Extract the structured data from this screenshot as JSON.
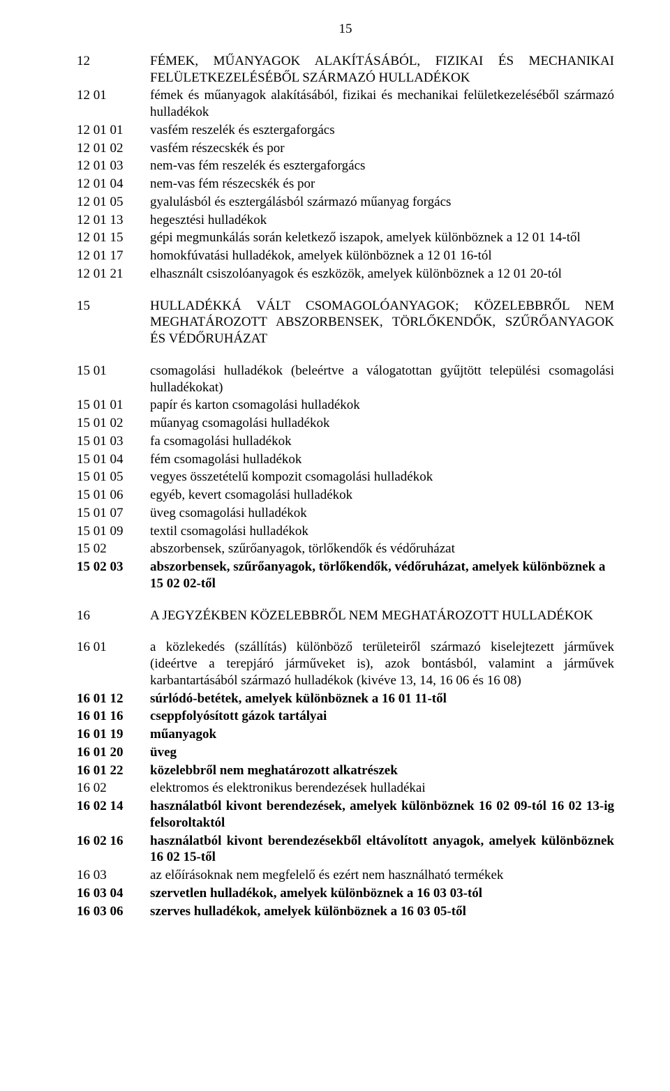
{
  "page_number": "15",
  "entries": [
    {
      "code": "12",
      "text": "FÉMEK, MŰANYAGOK ALAKÍTÁSÁBÓL, FIZIKAI ÉS MECHANIKAI FELÜLETKEZELÉSÉBŐL SZÁRMAZÓ HULLADÉKOK",
      "bold": false,
      "justify": true,
      "gap_before": false,
      "gap_after": false
    },
    {
      "code": "12 01",
      "text": "fémek és műanyagok alakításából, fizikai és mechanikai felületkezeléséből származó hulladékok",
      "bold": false,
      "justify": true,
      "gap_before": false,
      "gap_after": false
    },
    {
      "code": "12 01 01",
      "text": "vasfém reszelék és esztergaforgács",
      "bold": false,
      "justify": false,
      "gap_before": false,
      "gap_after": false
    },
    {
      "code": "12 01 02",
      "text": "vasfém részecskék és por",
      "bold": false,
      "justify": false,
      "gap_before": false,
      "gap_after": false
    },
    {
      "code": "12 01 03",
      "text": "nem-vas fém reszelék és esztergaforgács",
      "bold": false,
      "justify": false,
      "gap_before": false,
      "gap_after": false
    },
    {
      "code": "12 01 04",
      "text": "nem-vas fém részecskék és por",
      "bold": false,
      "justify": false,
      "gap_before": false,
      "gap_after": false
    },
    {
      "code": "12 01 05",
      "text": "gyalulásból és esztergálásból származó műanyag forgács",
      "bold": false,
      "justify": false,
      "gap_before": false,
      "gap_after": false
    },
    {
      "code": "12 01 13",
      "text": "hegesztési hulladékok",
      "bold": false,
      "justify": false,
      "gap_before": false,
      "gap_after": false
    },
    {
      "code": "12 01 15",
      "text": "gépi megmunkálás során keletkező iszapok, amelyek különböznek a 12 01 14-től",
      "bold": false,
      "justify": true,
      "gap_before": false,
      "gap_after": false
    },
    {
      "code": "12 01 17",
      "text": "homokfúvatási hulladékok, amelyek különböznek a 12 01 16-tól",
      "bold": false,
      "justify": false,
      "gap_before": false,
      "gap_after": false
    },
    {
      "code": "12 01 21",
      "text": "elhasznált csiszolóanyagok és eszközök, amelyek különböznek a 12 01 20-tól",
      "bold": false,
      "justify": false,
      "gap_before": false,
      "gap_after": false
    },
    {
      "code": "15",
      "text": "HULLADÉKKÁ VÁLT CSOMAGOLÓANYAGOK; KÖZELEBBRŐL NEM MEGHATÁROZOTT ABSZORBENSEK, TÖRLŐKENDŐK, SZŰRŐANYAGOK ÉS VÉDŐRUHÁZAT",
      "bold": false,
      "justify": true,
      "gap_before": true,
      "gap_after": true
    },
    {
      "code": "15 01",
      "text": "csomagolási hulladékok (beleértve a válogatottan gyűjtött települési csomagolási hulladékokat)",
      "bold": false,
      "justify": true,
      "gap_before": false,
      "gap_after": false
    },
    {
      "code": "15 01 01",
      "text": "papír és karton csomagolási hulladékok",
      "bold": false,
      "justify": false,
      "gap_before": false,
      "gap_after": false
    },
    {
      "code": "15 01 02",
      "text": "műanyag csomagolási hulladékok",
      "bold": false,
      "justify": false,
      "gap_before": false,
      "gap_after": false
    },
    {
      "code": "15 01 03",
      "text": "fa csomagolási hulladékok",
      "bold": false,
      "justify": false,
      "gap_before": false,
      "gap_after": false
    },
    {
      "code": "15 01 04",
      "text": "fém csomagolási hulladékok",
      "bold": false,
      "justify": false,
      "gap_before": false,
      "gap_after": false
    },
    {
      "code": "15 01 05",
      "text": "vegyes összetételű kompozit csomagolási hulladékok",
      "bold": false,
      "justify": false,
      "gap_before": false,
      "gap_after": false
    },
    {
      "code": "15 01 06",
      "text": "egyéb, kevert csomagolási hulladékok",
      "bold": false,
      "justify": false,
      "gap_before": false,
      "gap_after": false
    },
    {
      "code": "15 01 07",
      "text": "üveg csomagolási hulladékok",
      "bold": false,
      "justify": false,
      "gap_before": false,
      "gap_after": false
    },
    {
      "code": "15 01 09",
      "text": "textil csomagolási hulladékok",
      "bold": false,
      "justify": false,
      "gap_before": false,
      "gap_after": false
    },
    {
      "code": "15 02",
      "text": "abszorbensek, szűrőanyagok, törlőkendők és védőruházat",
      "bold": false,
      "justify": false,
      "gap_before": false,
      "gap_after": false
    },
    {
      "code": "15 02 03",
      "text": "abszorbensek, szűrőanyagok, törlőkendők, védőruházat, amelyek különböznek a 15 02 02-től",
      "bold": true,
      "justify": false,
      "gap_before": false,
      "gap_after": false
    },
    {
      "code": "16",
      "text": "A JEGYZÉKBEN KÖZELEBBRŐL NEM MEGHATÁROZOTT HULLADÉKOK",
      "bold": false,
      "justify": true,
      "gap_before": true,
      "gap_after": true
    },
    {
      "code": "16 01",
      "text": "a közlekedés (szállítás) különböző területeiről származó kiselejtezett járművek (ideértve a terepjáró járműveket is), azok bontásból, valamint a járművek karbantartásából származó hulladékok (kivéve 13, 14, 16 06 és 16 08)",
      "bold": false,
      "justify": true,
      "gap_before": false,
      "gap_after": false
    },
    {
      "code": "16 01 12",
      "text": "súrlódó-betétek, amelyek különböznek a 16 01 11-től",
      "bold": true,
      "justify": false,
      "gap_before": false,
      "gap_after": false
    },
    {
      "code": "16 01 16",
      "text": "cseppfolyósított gázok tartályai",
      "bold": true,
      "justify": false,
      "gap_before": false,
      "gap_after": false
    },
    {
      "code": "16 01 19",
      "text": "műanyagok",
      "bold": true,
      "justify": false,
      "gap_before": false,
      "gap_after": false
    },
    {
      "code": "16 01 20",
      "text": "üveg",
      "bold": true,
      "justify": false,
      "gap_before": false,
      "gap_after": false
    },
    {
      "code": "16 01 22",
      "text": "közelebbről nem meghatározott alkatrészek",
      "bold": true,
      "justify": false,
      "gap_before": false,
      "gap_after": false
    },
    {
      "code": "16 02",
      "text": "elektromos és elektronikus berendezések hulladékai",
      "bold": false,
      "justify": false,
      "gap_before": false,
      "gap_after": false
    },
    {
      "code": "16 02 14",
      "text": "használatból kivont berendezések, amelyek különböznek 16 02 09-tól 16 02 13-ig felsoroltaktól",
      "bold": true,
      "justify": true,
      "gap_before": false,
      "gap_after": false
    },
    {
      "code": "16 02 16",
      "text": "használatból kivont berendezésekből eltávolított anyagok, amelyek különböznek 16 02 15-től",
      "bold": true,
      "justify": true,
      "gap_before": false,
      "gap_after": false
    },
    {
      "code": "16 03",
      "text": "az előírásoknak nem megfelelő és ezért nem használható termékek",
      "bold": false,
      "justify": false,
      "gap_before": false,
      "gap_after": false
    },
    {
      "code": "16 03 04",
      "text": "szervetlen hulladékok, amelyek különböznek a 16 03 03-tól",
      "bold": true,
      "justify": false,
      "gap_before": false,
      "gap_after": false
    },
    {
      "code": "16 03 06",
      "text": "szerves hulladékok, amelyek különböznek a 16 03 05-től",
      "bold": true,
      "justify": false,
      "gap_before": false,
      "gap_after": false
    }
  ]
}
